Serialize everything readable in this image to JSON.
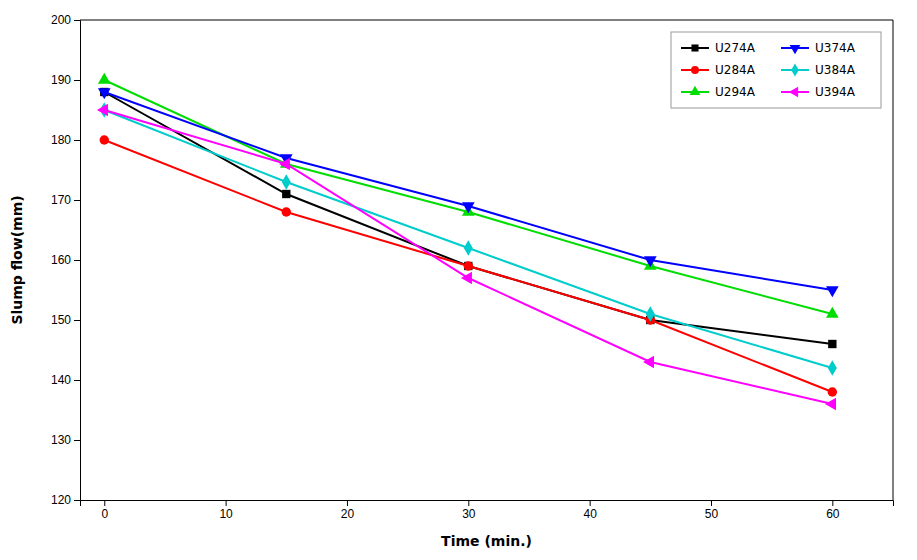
{
  "chart_data": {
    "type": "line",
    "xlabel": "Time (min.)",
    "ylabel": "Slump flow(mm)",
    "x": [
      0,
      15,
      30,
      45,
      60
    ],
    "series": [
      {
        "name": "U274A",
        "color": "#000000",
        "marker": "square",
        "values": [
          188,
          171,
          159,
          150,
          146
        ]
      },
      {
        "name": "U284A",
        "color": "#ff0000",
        "marker": "circle",
        "values": [
          180,
          168,
          159,
          150,
          138
        ]
      },
      {
        "name": "U294A",
        "color": "#00dd00",
        "marker": "triangle-up",
        "values": [
          190,
          176,
          168,
          159,
          151
        ]
      },
      {
        "name": "U374A",
        "color": "#0000ff",
        "marker": "triangle-down",
        "values": [
          188,
          177,
          169,
          160,
          155
        ]
      },
      {
        "name": "U384A",
        "color": "#00cccc",
        "marker": "diamond",
        "values": [
          185,
          173,
          162,
          151,
          142
        ]
      },
      {
        "name": "U394A",
        "color": "#ff00ff",
        "marker": "triangle-left",
        "values": [
          185,
          176,
          157,
          143,
          136
        ]
      }
    ],
    "xlim": [
      -2,
      65
    ],
    "ylim": [
      120,
      200
    ],
    "xticks": [
      0,
      10,
      20,
      30,
      40,
      50,
      60
    ],
    "yticks": [
      120,
      130,
      140,
      150,
      160,
      170,
      180,
      190,
      200
    ],
    "grid": false,
    "legend": "upper right"
  }
}
